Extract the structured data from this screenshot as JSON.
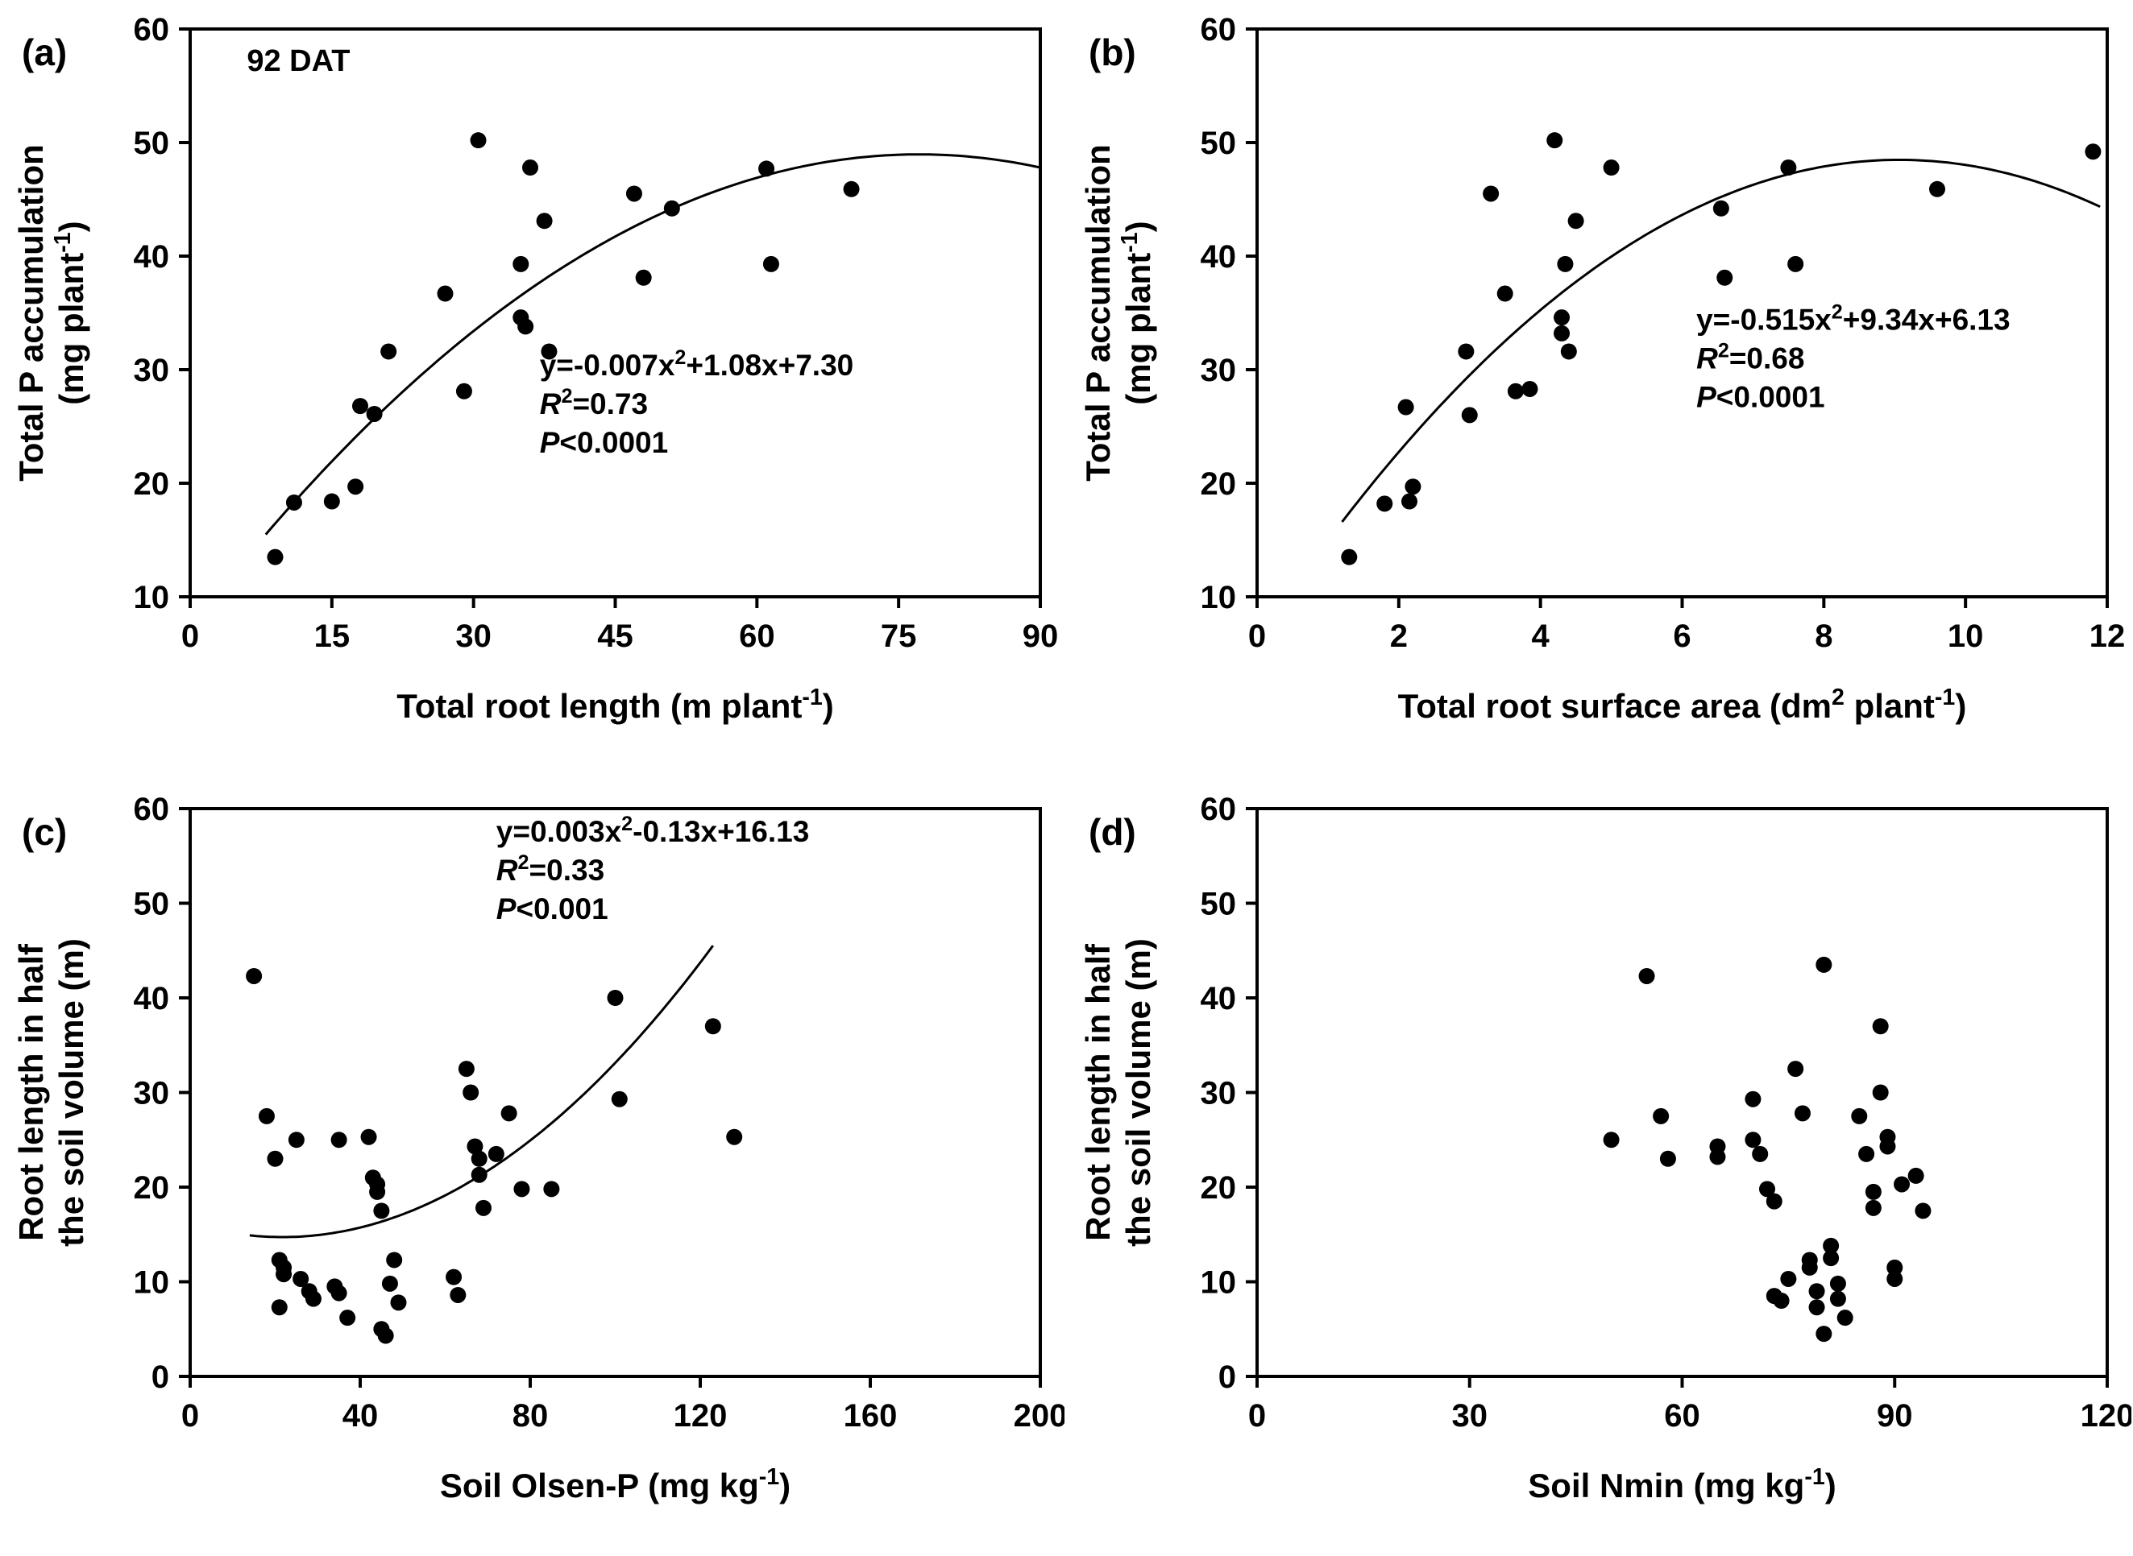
{
  "page": {
    "background": "#ffffff",
    "marker_color": "#000000",
    "axis_color": "#000000"
  },
  "chart_data": [
    {
      "id": "a",
      "type": "scatter",
      "panel_label": "(a)",
      "note": {
        "text": "92 DAT",
        "x": 6,
        "y": 56.3
      },
      "xlim": [
        0,
        90
      ],
      "xticks": [
        0,
        15,
        30,
        45,
        60,
        75,
        90
      ],
      "ylim": [
        10,
        60
      ],
      "yticks": [
        10,
        20,
        30,
        40,
        50,
        60
      ],
      "xlabel_parts": [
        [
          "n",
          "Total root length (m plant"
        ],
        [
          "s",
          "-1"
        ],
        [
          "n",
          ")"
        ]
      ],
      "ylabel_line1": [
        [
          "n",
          "Total P accumulation"
        ]
      ],
      "ylabel_line2": [
        [
          "n",
          "(mg plant"
        ],
        [
          "s",
          "-1"
        ],
        [
          "n",
          ")"
        ]
      ],
      "points": [
        [
          9,
          13.5
        ],
        [
          11,
          18.3
        ],
        [
          15,
          18.4
        ],
        [
          17.5,
          19.7
        ],
        [
          18,
          26.8
        ],
        [
          19.5,
          26.1
        ],
        [
          21,
          31.6
        ],
        [
          27,
          36.7
        ],
        [
          29,
          28.1
        ],
        [
          30.5,
          50.2
        ],
        [
          35,
          39.3
        ],
        [
          35,
          34.6
        ],
        [
          35.5,
          33.8
        ],
        [
          36,
          47.8
        ],
        [
          37.5,
          43.1
        ],
        [
          38,
          31.6
        ],
        [
          47,
          45.5
        ],
        [
          48,
          38.1
        ],
        [
          51,
          44.2
        ],
        [
          61,
          47.7
        ],
        [
          61.5,
          39.3
        ],
        [
          70,
          45.9
        ]
      ],
      "fit": {
        "coef": [
          -0.007,
          1.08,
          7.3
        ],
        "x_start": 8,
        "x_end": 90
      },
      "equation": {
        "x": 37,
        "y": 29.5,
        "lines": [
          [
            [
              "n",
              "y=-0.007x"
            ],
            [
              "s",
              "2"
            ],
            [
              "n",
              "+1.08x+7.30"
            ]
          ],
          [
            [
              "i",
              "R"
            ],
            [
              "s",
              "2"
            ],
            [
              "n",
              "=0.73"
            ]
          ],
          [
            [
              "i",
              "P"
            ],
            [
              "n",
              "<0.0001"
            ]
          ]
        ]
      }
    },
    {
      "id": "b",
      "type": "scatter",
      "panel_label": "(b)",
      "note": null,
      "xlim": [
        0,
        12
      ],
      "xticks": [
        0,
        2,
        4,
        6,
        8,
        10,
        12
      ],
      "ylim": [
        10,
        60
      ],
      "yticks": [
        10,
        20,
        30,
        40,
        50,
        60
      ],
      "xlabel_parts": [
        [
          "n",
          "Total root surface area (dm"
        ],
        [
          "s",
          "2"
        ],
        [
          "n",
          " plant"
        ],
        [
          "s",
          "-1"
        ],
        [
          "n",
          ")"
        ]
      ],
      "ylabel_line1": [
        [
          "n",
          "Total P accumulation"
        ]
      ],
      "ylabel_line2": [
        [
          "n",
          "(mg plant"
        ],
        [
          "s",
          "-1"
        ],
        [
          "n",
          ")"
        ]
      ],
      "points": [
        [
          1.3,
          13.5
        ],
        [
          1.8,
          18.2
        ],
        [
          2.1,
          26.7
        ],
        [
          2.15,
          18.4
        ],
        [
          2.2,
          19.7
        ],
        [
          2.95,
          31.6
        ],
        [
          3.0,
          26.0
        ],
        [
          3.3,
          45.5
        ],
        [
          3.5,
          36.7
        ],
        [
          3.65,
          28.1
        ],
        [
          3.85,
          28.3
        ],
        [
          4.2,
          50.2
        ],
        [
          4.3,
          34.6
        ],
        [
          4.3,
          33.2
        ],
        [
          4.35,
          39.3
        ],
        [
          4.4,
          31.6
        ],
        [
          4.5,
          43.1
        ],
        [
          5.0,
          47.8
        ],
        [
          6.55,
          44.2
        ],
        [
          6.6,
          38.1
        ],
        [
          7.5,
          47.8
        ],
        [
          7.6,
          39.3
        ],
        [
          9.6,
          45.9
        ],
        [
          11.8,
          49.2
        ]
      ],
      "fit": {
        "coef": [
          -0.515,
          9.34,
          6.13
        ],
        "x_start": 1.2,
        "x_end": 11.9
      },
      "equation": {
        "x": 6.2,
        "y": 33.5,
        "lines": [
          [
            [
              "n",
              "y=-0.515x"
            ],
            [
              "s",
              "2"
            ],
            [
              "n",
              "+9.34x+6.13"
            ]
          ],
          [
            [
              "i",
              "R"
            ],
            [
              "s",
              "2"
            ],
            [
              "n",
              "=0.68"
            ]
          ],
          [
            [
              "i",
              "P"
            ],
            [
              "n",
              "<0.0001"
            ]
          ]
        ]
      }
    },
    {
      "id": "c",
      "type": "scatter",
      "panel_label": "(c)",
      "note": null,
      "xlim": [
        0,
        200
      ],
      "xticks": [
        0,
        40,
        80,
        120,
        160,
        200
      ],
      "ylim": [
        0,
        60
      ],
      "yticks": [
        0,
        10,
        20,
        30,
        40,
        50,
        60
      ],
      "xlabel_parts": [
        [
          "n",
          "Soil Olsen-P (mg kg"
        ],
        [
          "s",
          "-1"
        ],
        [
          "n",
          ")"
        ]
      ],
      "ylabel_line1": [
        [
          "n",
          "Root length in half"
        ]
      ],
      "ylabel_line2": [
        [
          "n",
          "the soil volume (m)"
        ]
      ],
      "points": [
        [
          15,
          42.3
        ],
        [
          18,
          27.5
        ],
        [
          20,
          23.0
        ],
        [
          21,
          12.3
        ],
        [
          21,
          7.3
        ],
        [
          22,
          11.5
        ],
        [
          22,
          10.8
        ],
        [
          25,
          25.0
        ],
        [
          26,
          10.3
        ],
        [
          28,
          9.0
        ],
        [
          29,
          8.2
        ],
        [
          34,
          9.5
        ],
        [
          35,
          25.0
        ],
        [
          35,
          8.8
        ],
        [
          37,
          6.2
        ],
        [
          42,
          25.3
        ],
        [
          43,
          21.0
        ],
        [
          44,
          20.3
        ],
        [
          44,
          19.5
        ],
        [
          45,
          17.5
        ],
        [
          45,
          5.0
        ],
        [
          46,
          4.3
        ],
        [
          47,
          9.8
        ],
        [
          48,
          12.3
        ],
        [
          49,
          7.8
        ],
        [
          62,
          10.5
        ],
        [
          63,
          8.6
        ],
        [
          65,
          32.5
        ],
        [
          66,
          30.0
        ],
        [
          67,
          24.3
        ],
        [
          68,
          23.0
        ],
        [
          68,
          21.3
        ],
        [
          69,
          17.8
        ],
        [
          72,
          23.5
        ],
        [
          75,
          27.8
        ],
        [
          78,
          19.8
        ],
        [
          85,
          19.8
        ],
        [
          100,
          40.0
        ],
        [
          101,
          29.3
        ],
        [
          123,
          37.0
        ],
        [
          128,
          25.3
        ]
      ],
      "fit": {
        "coef": [
          0.003,
          -0.13,
          16.13
        ],
        "x_start": 14,
        "x_end": 123
      },
      "equation": {
        "x": 72,
        "y": 56.5,
        "lines": [
          [
            [
              "n",
              "y=0.003x"
            ],
            [
              "s",
              "2"
            ],
            [
              "n",
              "-0.13x+16.13"
            ]
          ],
          [
            [
              "i",
              "R"
            ],
            [
              "s",
              "2"
            ],
            [
              "n",
              "=0.33"
            ]
          ],
          [
            [
              "i",
              "P"
            ],
            [
              "n",
              "<0.001"
            ]
          ]
        ]
      }
    },
    {
      "id": "d",
      "type": "scatter",
      "panel_label": "(d)",
      "note": null,
      "xlim": [
        0,
        120
      ],
      "xticks": [
        0,
        30,
        60,
        90,
        120
      ],
      "ylim": [
        0,
        60
      ],
      "yticks": [
        0,
        10,
        20,
        30,
        40,
        50,
        60
      ],
      "xlabel_parts": [
        [
          "n",
          "Soil Nmin (mg kg"
        ],
        [
          "s",
          "-1"
        ],
        [
          "n",
          ")"
        ]
      ],
      "ylabel_line1": [
        [
          "n",
          "Root length in half"
        ]
      ],
      "ylabel_line2": [
        [
          "n",
          "the soil volume (m)"
        ]
      ],
      "points": [
        [
          50,
          25.0
        ],
        [
          55,
          42.3
        ],
        [
          57,
          27.5
        ],
        [
          58,
          23.0
        ],
        [
          65,
          24.3
        ],
        [
          65,
          23.2
        ],
        [
          70,
          29.3
        ],
        [
          70,
          25.0
        ],
        [
          71,
          23.5
        ],
        [
          72,
          19.8
        ],
        [
          73,
          18.5
        ],
        [
          73,
          8.5
        ],
        [
          74,
          8.0
        ],
        [
          75,
          10.3
        ],
        [
          76,
          32.5
        ],
        [
          77,
          27.8
        ],
        [
          78,
          12.3
        ],
        [
          78,
          11.5
        ],
        [
          79,
          9.0
        ],
        [
          79,
          7.3
        ],
        [
          80,
          43.5
        ],
        [
          80,
          4.5
        ],
        [
          81,
          13.8
        ],
        [
          81,
          12.5
        ],
        [
          82,
          9.8
        ],
        [
          82,
          8.2
        ],
        [
          83,
          6.2
        ],
        [
          85,
          27.5
        ],
        [
          86,
          23.5
        ],
        [
          87,
          19.5
        ],
        [
          87,
          17.8
        ],
        [
          88,
          37.0
        ],
        [
          88,
          30.0
        ],
        [
          89,
          25.3
        ],
        [
          89,
          24.3
        ],
        [
          90,
          11.5
        ],
        [
          90,
          10.3
        ],
        [
          91,
          20.3
        ],
        [
          93,
          21.2
        ],
        [
          94,
          17.5
        ]
      ],
      "fit": null,
      "equation": null
    }
  ]
}
